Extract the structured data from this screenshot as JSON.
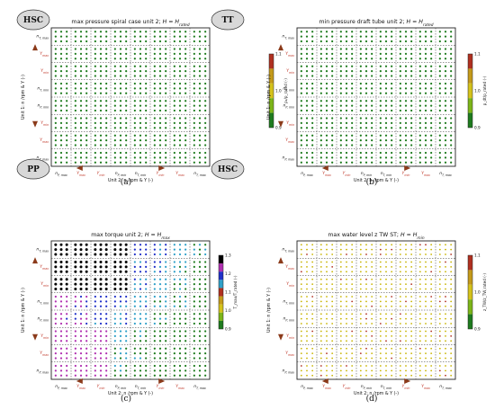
{
  "chart_data": [
    {
      "type": "scatter",
      "panel": "(a)",
      "title_main": "max pressure spiral case unit 2; ",
      "title_math": "H = H",
      "title_sub": "rated",
      "ylabel": "Unit 1: n /rpm & Y (-)",
      "xlabel": "Unit 2: n /rpm & Y (-)",
      "colorbar_label": "p₂/p_rated (-)",
      "colorbar_ticks": [
        "0.9",
        "1.0",
        "1.1"
      ],
      "colorbar_colors": [
        "#1e7b1e",
        "#7cb518",
        "#d4c21b",
        "#c49a1a",
        "#b03020"
      ],
      "corners": [
        "HSC",
        "TT",
        "PP",
        "HSC"
      ],
      "dot_colors": [
        "#1e7b1e"
      ],
      "variant": 0
    },
    {
      "type": "scatter",
      "panel": "(b)",
      "title_main": "min pressure draft tube unit 2; ",
      "title_math": "H = H",
      "title_sub": "rated",
      "ylabel": "Unit 1: n /rpm & Y (-)",
      "xlabel": "Unit 2: n /rpm & Y (-)",
      "colorbar_label": "p_dt/p_rated (-)",
      "colorbar_ticks": [
        "0.9",
        "1.0",
        "1.1"
      ],
      "colorbar_colors": [
        "#1e7b1e",
        "#7cb518",
        "#d4c21b",
        "#c49a1a",
        "#b03020"
      ],
      "corners": [],
      "dot_colors": [
        "#1e7b1e"
      ],
      "variant": 0
    },
    {
      "type": "scatter",
      "panel": "(c)",
      "title_main": "max torque unit 2; ",
      "title_math": "H = H",
      "title_sub": "max",
      "ylabel": "Unit 1: n /rpm & Y (-)",
      "xlabel": "Unit 2: n /rpm & Y (-)",
      "colorbar_label": "T_max/T_rated (-)",
      "colorbar_ticks": [
        "0.9",
        "1.0",
        "1.1",
        "1.2",
        "1.3"
      ],
      "colorbar_colors": [
        "#1e7b1e",
        "#7cb518",
        "#d4c21b",
        "#c49a1a",
        "#b03020",
        "#2fa0c8",
        "#2030c8",
        "#b030b0",
        "#000000"
      ],
      "corners": [],
      "dot_colors": [
        "#000000",
        "#b030b0",
        "#2030c8",
        "#2fa0c8",
        "#1e7b1e"
      ],
      "variant": 1
    },
    {
      "type": "scatter",
      "panel": "(d)",
      "title_main": "max water level z TW ST; ",
      "title_math": "H = H",
      "title_sub": "min",
      "ylabel": "Unit 1: n /rpm & Y (-)",
      "xlabel": "Unit 2: n /rpm & Y (-)",
      "colorbar_label": "z_TW/z_TW,rated (-)",
      "colorbar_ticks": [
        "0.9",
        "1.0",
        "1.1"
      ],
      "colorbar_colors": [
        "#1e7b1e",
        "#7cb518",
        "#d4c21b",
        "#c49a1a",
        "#b03020"
      ],
      "corners": [],
      "dot_colors": [
        "#c8b400"
      ],
      "variant": 2
    }
  ],
  "y_ticks": [
    {
      "t": "n",
      "s": "T, max",
      "red": false
    },
    {
      "t": "Y",
      "s": "max",
      "red": true
    },
    {
      "t": "Y",
      "s": "min",
      "red": true
    },
    {
      "t": "n",
      "s": "T, min",
      "red": false
    },
    {
      "t": "n",
      "s": "P, min",
      "red": false
    },
    {
      "t": "Y",
      "s": "min",
      "red": true
    },
    {
      "t": "Y",
      "s": "max",
      "red": true
    },
    {
      "t": "n",
      "s": "P, max",
      "red": false
    }
  ],
  "x_ticks": [
    {
      "t": "n",
      "s": "P, max",
      "red": false
    },
    {
      "t": "Y",
      "s": "max",
      "red": true
    },
    {
      "t": "Y",
      "s": "min",
      "red": true
    },
    {
      "t": "n",
      "s": "P, min",
      "red": false
    },
    {
      "t": "n",
      "s": "T, min",
      "red": false
    },
    {
      "t": "Y",
      "s": "min",
      "red": true
    },
    {
      "t": "Y",
      "s": "max",
      "red": true
    },
    {
      "t": "n",
      "s": "T, max",
      "red": false
    }
  ]
}
